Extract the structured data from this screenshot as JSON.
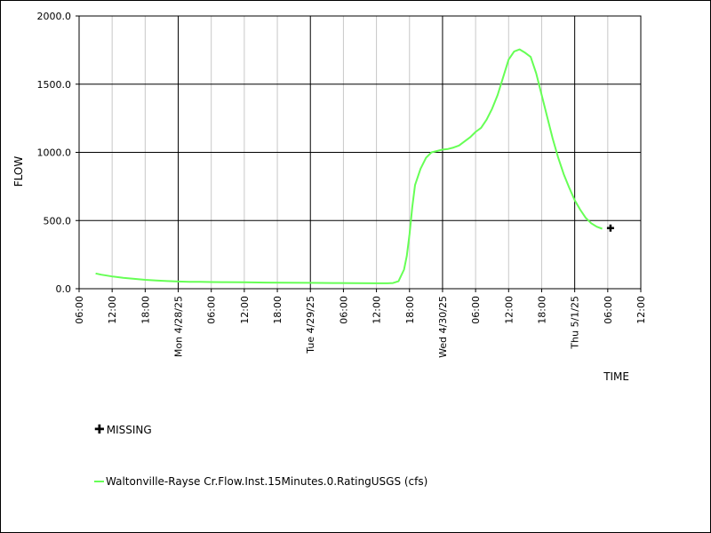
{
  "chart_data": {
    "type": "line",
    "title": "",
    "xlabel": "TIME",
    "ylabel": "FLOW",
    "ylim": [
      0,
      2000
    ],
    "y_ticks": [
      "0.0",
      "500.0",
      "1000.0",
      "1500.0",
      "2000.0"
    ],
    "x_range_hours": [
      0,
      102
    ],
    "x_tick_labels": [
      "06:00",
      "12:00",
      "18:00",
      "Mon 4/28/25",
      "06:00",
      "12:00",
      "18:00",
      "Tue 4/29/25",
      "06:00",
      "12:00",
      "18:00",
      "Wed 4/30/25",
      "06:00",
      "12:00",
      "18:00",
      "Thu 5/1/25",
      "06:00",
      "12:00"
    ],
    "grid": true,
    "legend_position": "bottom-left",
    "series": [
      {
        "name": "Waltonville-Rayse Cr.Flow.Inst.15Minutes.0.RatingUSGS (cfs)",
        "color": "#66ff55",
        "points": [
          [
            3,
            112
          ],
          [
            4,
            103
          ],
          [
            6,
            90
          ],
          [
            8,
            80
          ],
          [
            10,
            72
          ],
          [
            12,
            65
          ],
          [
            14,
            60
          ],
          [
            16,
            56
          ],
          [
            18,
            53
          ],
          [
            20,
            51
          ],
          [
            22,
            50
          ],
          [
            24,
            49
          ],
          [
            26,
            48
          ],
          [
            30,
            47
          ],
          [
            34,
            45
          ],
          [
            38,
            44
          ],
          [
            42,
            43
          ],
          [
            46,
            42
          ],
          [
            50,
            41
          ],
          [
            54,
            40
          ],
          [
            56,
            40
          ],
          [
            57,
            42
          ],
          [
            58,
            55
          ],
          [
            59,
            140
          ],
          [
            59.5,
            240
          ],
          [
            60,
            400
          ],
          [
            60.5,
            600
          ],
          [
            61,
            760
          ],
          [
            62,
            880
          ],
          [
            63,
            960
          ],
          [
            64,
            1000
          ],
          [
            65,
            1010
          ],
          [
            66,
            1020
          ],
          [
            67,
            1025
          ],
          [
            68,
            1035
          ],
          [
            69,
            1050
          ],
          [
            70,
            1080
          ],
          [
            71,
            1110
          ],
          [
            72,
            1150
          ],
          [
            73,
            1180
          ],
          [
            74,
            1240
          ],
          [
            75,
            1320
          ],
          [
            76,
            1420
          ],
          [
            77,
            1550
          ],
          [
            78,
            1680
          ],
          [
            79,
            1740
          ],
          [
            80,
            1755
          ],
          [
            81,
            1730
          ],
          [
            82,
            1700
          ],
          [
            83,
            1580
          ],
          [
            84,
            1420
          ],
          [
            85,
            1260
          ],
          [
            86,
            1100
          ],
          [
            87,
            960
          ],
          [
            88,
            840
          ],
          [
            89,
            740
          ],
          [
            90,
            650
          ],
          [
            91,
            580
          ],
          [
            92,
            520
          ],
          [
            93,
            480
          ],
          [
            94,
            455
          ],
          [
            95,
            440
          ]
        ]
      }
    ],
    "missing": [
      [
        96.5,
        445
      ]
    ],
    "legend": {
      "missing_symbol": "✚",
      "missing_label": "MISSING",
      "series_label": "Waltonville-Rayse Cr.Flow.Inst.15Minutes.0.RatingUSGS (cfs)"
    }
  }
}
